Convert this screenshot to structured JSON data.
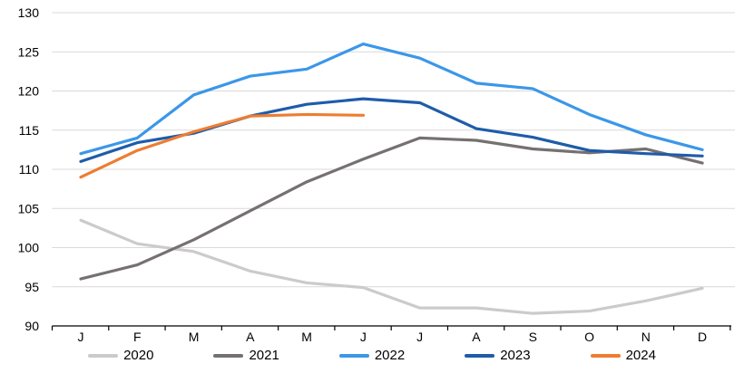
{
  "chart_data": {
    "type": "line",
    "title": "",
    "xlabel": "",
    "ylabel": "",
    "x_categories": [
      "J",
      "F",
      "M",
      "A",
      "M",
      "J",
      "J",
      "A",
      "S",
      "O",
      "N",
      "D"
    ],
    "y_ticks": [
      90,
      95,
      100,
      105,
      110,
      115,
      120,
      125,
      130
    ],
    "ylim": [
      90,
      130
    ],
    "grid": "horizontal",
    "legend_position": "bottom",
    "series": [
      {
        "name": "2020",
        "color": "#cbcbcb",
        "values": [
          103.5,
          100.5,
          99.5,
          97.0,
          95.5,
          94.9,
          92.3,
          92.3,
          91.6,
          91.9,
          93.2,
          94.8
        ]
      },
      {
        "name": "2021",
        "color": "#767171",
        "values": [
          96.0,
          97.8,
          101.0,
          104.7,
          108.4,
          111.3,
          114.0,
          113.7,
          112.6,
          112.1,
          112.6,
          110.8
        ]
      },
      {
        "name": "2022",
        "color": "#3b97e8",
        "values": [
          112.0,
          114.0,
          119.5,
          121.9,
          122.8,
          126.0,
          124.2,
          121.0,
          120.3,
          117.0,
          114.4,
          112.5
        ]
      },
      {
        "name": "2023",
        "color": "#1f5ca9",
        "values": [
          111.0,
          113.4,
          114.6,
          116.8,
          118.3,
          119.0,
          118.5,
          115.2,
          114.1,
          112.4,
          112.0,
          111.7
        ]
      },
      {
        "name": "2024",
        "color": "#ed7d31",
        "values": [
          109.0,
          112.4,
          114.8,
          116.8,
          117.0,
          116.9
        ]
      }
    ]
  },
  "colors": {
    "gridline": "#d9d9d9",
    "axis": "#000000",
    "text": "#000000",
    "background": "#ffffff"
  }
}
